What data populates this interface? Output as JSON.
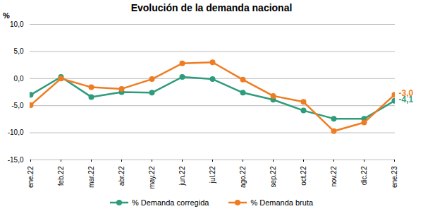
{
  "chart_data": {
    "type": "line",
    "title": "Evolución de la demanda nacional",
    "y_label": "%",
    "categories": [
      "ene.22",
      "feb.22",
      "mar.22",
      "abr.22",
      "may.22",
      "jun.22",
      "jul.22",
      "ago.22",
      "sep.22",
      "oct.22",
      "nov.22",
      "dic.22",
      "ene.23"
    ],
    "series": [
      {
        "name": "% Demanda corregida",
        "color": "#2e9c7c",
        "marker": "circle",
        "line_style": "solid",
        "values": [
          -3.0,
          0.3,
          -3.4,
          -2.5,
          -2.6,
          0.3,
          -0.1,
          -2.6,
          -3.9,
          -5.9,
          -7.4,
          -7.4,
          -4.1
        ],
        "value_labels": [
          null,
          null,
          null,
          null,
          null,
          null,
          null,
          null,
          null,
          null,
          null,
          null,
          "-4,1"
        ]
      },
      {
        "name": "% Demanda bruta",
        "color": "#f07c22",
        "marker": "circle",
        "line_style": "solid",
        "values": [
          -4.9,
          0.0,
          -1.6,
          -1.9,
          -0.1,
          2.8,
          3.0,
          -0.2,
          -3.2,
          -4.3,
          -9.7,
          -8.1,
          -3.0
        ],
        "value_labels": [
          null,
          null,
          null,
          null,
          null,
          null,
          null,
          null,
          null,
          null,
          null,
          null,
          "-3,0"
        ]
      }
    ],
    "ylim": [
      -15,
      10
    ],
    "yticks": [
      {
        "value": 10,
        "label": "10,0"
      },
      {
        "value": 5,
        "label": "5,0"
      },
      {
        "value": 0,
        "label": "0,0"
      },
      {
        "value": -5,
        "label": "-5,0"
      },
      {
        "value": -10,
        "label": "-10,0"
      },
      {
        "value": -15,
        "label": "-15,0"
      }
    ],
    "grid": true,
    "legend": "bottom",
    "data_labels": true
  }
}
